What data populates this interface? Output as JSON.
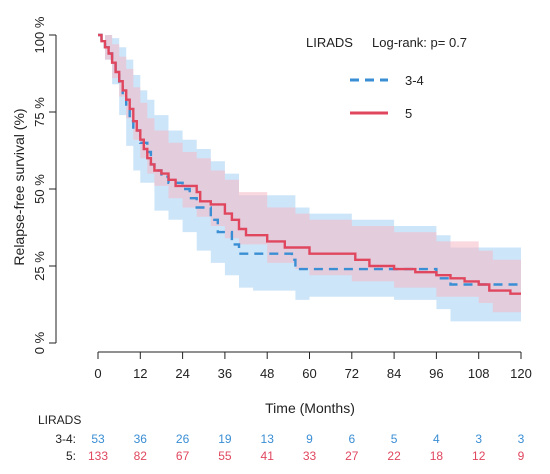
{
  "chart_data": {
    "type": "line",
    "subtype": "kaplan-meier",
    "xlabel": "Time (Months)",
    "ylabel": "Relapse-free survival (%)",
    "xlim": [
      0,
      120
    ],
    "ylim": [
      0,
      100
    ],
    "xticks": [
      "0",
      "12",
      "24",
      "36",
      "48",
      "60",
      "72",
      "84",
      "96",
      "108",
      "120"
    ],
    "yticks": [
      "0 %",
      "25 %",
      "50 %",
      "75 %",
      "100 %"
    ],
    "legend": {
      "title": "LIRADS",
      "pvalue_text": "Log-rank: p= 0.7",
      "placement": "top-right"
    },
    "colors": {
      "series_3_4": "#3a8ed4",
      "series_5": "#e0475f",
      "ci_3_4": "#bcdcf5",
      "ci_5": "#f5b8c4"
    },
    "series": [
      {
        "name": "3-4",
        "line_style": "dashed",
        "steps": [
          [
            0,
            100
          ],
          [
            1,
            98
          ],
          [
            2,
            96
          ],
          [
            3,
            94
          ],
          [
            4,
            92
          ],
          [
            5,
            88
          ],
          [
            6,
            84
          ],
          [
            7,
            80
          ],
          [
            8,
            76
          ],
          [
            9,
            72
          ],
          [
            10,
            69
          ],
          [
            12,
            65
          ],
          [
            14,
            62
          ],
          [
            15,
            58
          ],
          [
            16,
            56
          ],
          [
            18,
            54
          ],
          [
            20,
            52
          ],
          [
            24,
            50
          ],
          [
            26,
            47
          ],
          [
            28,
            44
          ],
          [
            32,
            40
          ],
          [
            34,
            36
          ],
          [
            38,
            32
          ],
          [
            40,
            29
          ],
          [
            48,
            29
          ],
          [
            55,
            27
          ],
          [
            56,
            24
          ],
          [
            72,
            24
          ],
          [
            84,
            24
          ],
          [
            92,
            24
          ],
          [
            96,
            21
          ],
          [
            100,
            19
          ],
          [
            120,
            19
          ]
        ],
        "ci_upper": [
          [
            0,
            100
          ],
          [
            2,
            100
          ],
          [
            4,
            99
          ],
          [
            6,
            96
          ],
          [
            8,
            92
          ],
          [
            10,
            87
          ],
          [
            12,
            82
          ],
          [
            14,
            79
          ],
          [
            16,
            74
          ],
          [
            20,
            69
          ],
          [
            24,
            66
          ],
          [
            28,
            63
          ],
          [
            32,
            59
          ],
          [
            36,
            55
          ],
          [
            40,
            48
          ],
          [
            48,
            48
          ],
          [
            56,
            44
          ],
          [
            60,
            42
          ],
          [
            72,
            40
          ],
          [
            84,
            38
          ],
          [
            96,
            35
          ],
          [
            100,
            31
          ],
          [
            120,
            31
          ]
        ],
        "ci_lower": [
          [
            0,
            100
          ],
          [
            2,
            92
          ],
          [
            4,
            84
          ],
          [
            6,
            74
          ],
          [
            8,
            64
          ],
          [
            10,
            56
          ],
          [
            12,
            52
          ],
          [
            16,
            43
          ],
          [
            20,
            40
          ],
          [
            24,
            36
          ],
          [
            28,
            30
          ],
          [
            32,
            26
          ],
          [
            36,
            22
          ],
          [
            40,
            18
          ],
          [
            44,
            17
          ],
          [
            48,
            17
          ],
          [
            56,
            14
          ],
          [
            60,
            15
          ],
          [
            72,
            15
          ],
          [
            84,
            14
          ],
          [
            96,
            11
          ],
          [
            100,
            7
          ],
          [
            120,
            7
          ]
        ]
      },
      {
        "name": "5",
        "line_style": "solid",
        "steps": [
          [
            0,
            100
          ],
          [
            1,
            98
          ],
          [
            2,
            96
          ],
          [
            3,
            94
          ],
          [
            4,
            91
          ],
          [
            5,
            88
          ],
          [
            6,
            85
          ],
          [
            7,
            82
          ],
          [
            8,
            79
          ],
          [
            9,
            76
          ],
          [
            10,
            72
          ],
          [
            11,
            69
          ],
          [
            12,
            66
          ],
          [
            13,
            63
          ],
          [
            14,
            60
          ],
          [
            15,
            58
          ],
          [
            16,
            56
          ],
          [
            18,
            55
          ],
          [
            20,
            53
          ],
          [
            22,
            51
          ],
          [
            26,
            51
          ],
          [
            28,
            49
          ],
          [
            29,
            46
          ],
          [
            32,
            45
          ],
          [
            36,
            42
          ],
          [
            38,
            40
          ],
          [
            40,
            37
          ],
          [
            42,
            35
          ],
          [
            48,
            33
          ],
          [
            53,
            31
          ],
          [
            57,
            31
          ],
          [
            60,
            29
          ],
          [
            65,
            29
          ],
          [
            69,
            29
          ],
          [
            73,
            27
          ],
          [
            77,
            25
          ],
          [
            84,
            24
          ],
          [
            90,
            23
          ],
          [
            96,
            22
          ],
          [
            100,
            21
          ],
          [
            104,
            20
          ],
          [
            108,
            19
          ],
          [
            110,
            19
          ],
          [
            111,
            17
          ],
          [
            117,
            16
          ],
          [
            120,
            16
          ]
        ],
        "ci_upper": [
          [
            0,
            100
          ],
          [
            2,
            100
          ],
          [
            4,
            97
          ],
          [
            6,
            93
          ],
          [
            8,
            89
          ],
          [
            10,
            83
          ],
          [
            12,
            78
          ],
          [
            14,
            73
          ],
          [
            16,
            69
          ],
          [
            20,
            65
          ],
          [
            24,
            62
          ],
          [
            28,
            60
          ],
          [
            32,
            56
          ],
          [
            36,
            53
          ],
          [
            40,
            49
          ],
          [
            48,
            44
          ],
          [
            56,
            42
          ],
          [
            60,
            40
          ],
          [
            72,
            38
          ],
          [
            84,
            36
          ],
          [
            96,
            33
          ],
          [
            108,
            30
          ],
          [
            112,
            27
          ],
          [
            120,
            26
          ]
        ],
        "ci_lower": [
          [
            0,
            100
          ],
          [
            2,
            92
          ],
          [
            4,
            86
          ],
          [
            6,
            80
          ],
          [
            8,
            73
          ],
          [
            10,
            66
          ],
          [
            12,
            60
          ],
          [
            14,
            55
          ],
          [
            16,
            51
          ],
          [
            20,
            47
          ],
          [
            24,
            44
          ],
          [
            28,
            41
          ],
          [
            32,
            38
          ],
          [
            36,
            34
          ],
          [
            40,
            32
          ],
          [
            48,
            26
          ],
          [
            56,
            24
          ],
          [
            60,
            22
          ],
          [
            72,
            20
          ],
          [
            84,
            18
          ],
          [
            96,
            15
          ],
          [
            108,
            13
          ],
          [
            112,
            10
          ],
          [
            120,
            10
          ]
        ]
      }
    ],
    "risk_table": {
      "title": "LIRADS",
      "times": [
        0,
        12,
        24,
        36,
        48,
        60,
        72,
        84,
        96,
        108,
        120
      ],
      "rows": [
        {
          "label": "3-4:",
          "counts": [
            53,
            36,
            26,
            19,
            13,
            9,
            6,
            5,
            4,
            3,
            3
          ]
        },
        {
          "label": "5:",
          "counts": [
            133,
            82,
            67,
            55,
            41,
            33,
            27,
            22,
            18,
            12,
            9
          ]
        }
      ]
    }
  }
}
